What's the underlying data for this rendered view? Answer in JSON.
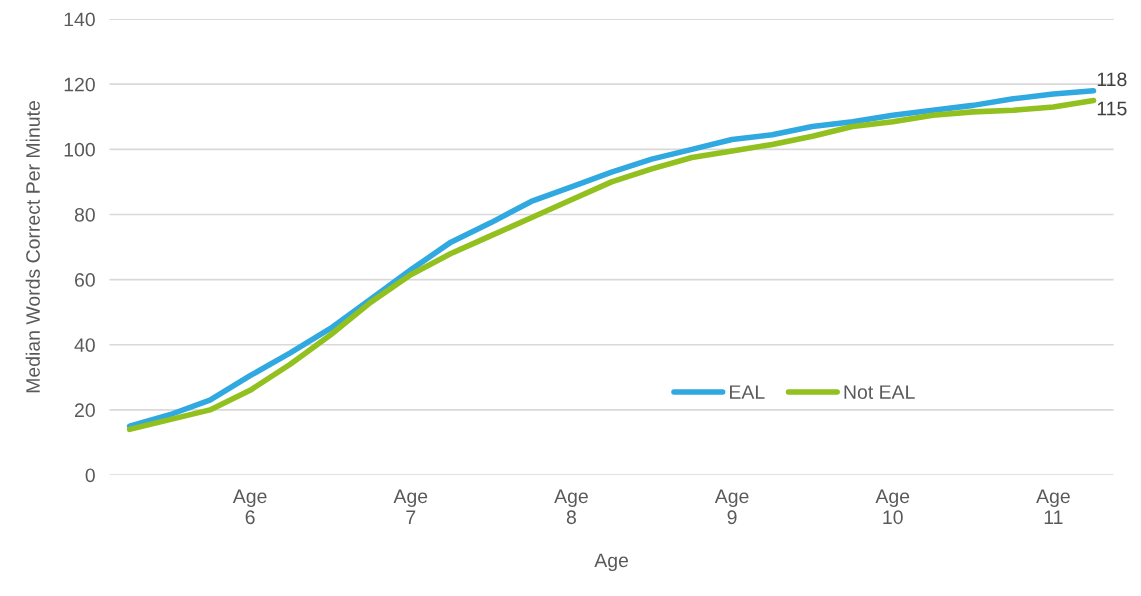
{
  "chart_data": {
    "type": "line",
    "xlabel": "Age",
    "ylabel": "Median Words Correct Per Minute",
    "categories": [
      null,
      null,
      null,
      "Age\n6",
      null,
      null,
      null,
      "Age\n7",
      null,
      null,
      null,
      "Age\n8",
      null,
      null,
      null,
      "Age\n9",
      null,
      null,
      null,
      "Age\n10",
      null,
      null,
      null,
      "Age\n11",
      null
    ],
    "series": [
      {
        "name": "EAL",
        "color": "#30a9e0",
        "values": [
          15,
          18.5,
          23,
          30.5,
          37.5,
          45,
          54,
          63,
          71.5,
          77.5,
          84,
          88.5,
          93,
          97,
          100,
          103,
          104.5,
          107,
          108.5,
          110.5,
          112,
          113.5,
          115.5,
          117,
          118
        ],
        "value_labels": [
          null,
          null,
          null,
          null,
          null,
          null,
          null,
          null,
          null,
          null,
          null,
          null,
          null,
          null,
          null,
          null,
          null,
          null,
          null,
          null,
          null,
          null,
          null,
          null,
          "118"
        ]
      },
      {
        "name": "Not EAL",
        "color": "#92c01f",
        "values": [
          14,
          17,
          20,
          26,
          34,
          43,
          53,
          61.5,
          68,
          73.5,
          79,
          84.5,
          90,
          94,
          97.5,
          99.5,
          101.5,
          104,
          107,
          108.5,
          110.5,
          111.5,
          112,
          113,
          115
        ],
        "value_labels": [
          null,
          null,
          null,
          null,
          null,
          null,
          null,
          null,
          null,
          null,
          null,
          null,
          null,
          null,
          null,
          null,
          null,
          null,
          null,
          null,
          null,
          null,
          null,
          null,
          "115"
        ]
      }
    ],
    "ylim": [
      0,
      140
    ],
    "yticks": [
      0,
      20,
      40,
      60,
      80,
      100,
      120,
      140
    ],
    "grid": "y",
    "legend": "lower right",
    "marker": "none",
    "line_style": "solid"
  }
}
